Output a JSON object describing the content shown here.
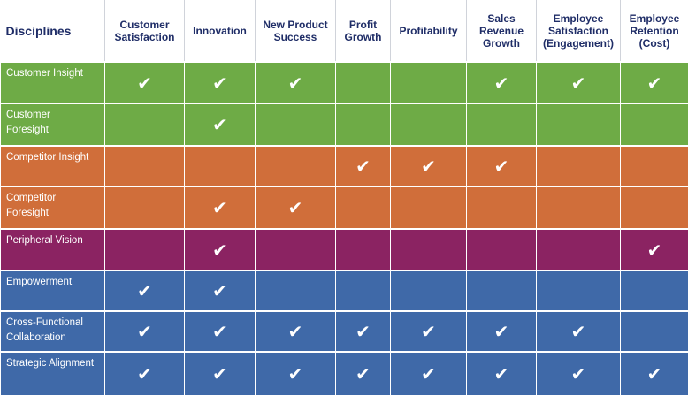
{
  "header": {
    "disciplines": "Disciplines",
    "columns": [
      [
        "Customer",
        "Satisfaction"
      ],
      [
        "Innovation"
      ],
      [
        "New Product",
        "Success"
      ],
      [
        "Profit",
        "Growth"
      ],
      [
        "Profitability"
      ],
      [
        "Sales",
        "Revenue",
        "Growth"
      ],
      [
        "Employee",
        "Satisfaction",
        "(Engagement)"
      ],
      [
        "Employee",
        "Retention",
        "(Cost)"
      ]
    ]
  },
  "check_icon": "check-icon",
  "colors": {
    "green": "#6eab46",
    "orange": "#d06e3a",
    "purple": "#8b2362",
    "blue": "#3f69a8",
    "header_text": "#1f2d67"
  },
  "rows": [
    {
      "label": [
        "Customer Insight"
      ],
      "color": "green",
      "height": 47,
      "checks": [
        true,
        true,
        true,
        false,
        false,
        true,
        true,
        true
      ]
    },
    {
      "label": [
        "Customer",
        "Foresight"
      ],
      "color": "green",
      "height": 48,
      "checks": [
        false,
        true,
        false,
        false,
        false,
        false,
        false,
        false
      ]
    },
    {
      "label": [
        "Competitor Insight"
      ],
      "color": "orange",
      "height": 46,
      "checks": [
        false,
        false,
        false,
        true,
        true,
        true,
        false,
        false
      ]
    },
    {
      "label": [
        "Competitor",
        "Foresight"
      ],
      "color": "orange",
      "height": 48,
      "checks": [
        false,
        true,
        true,
        false,
        false,
        false,
        false,
        false
      ]
    },
    {
      "label": [
        "Peripheral Vision"
      ],
      "color": "purple",
      "height": 47,
      "checks": [
        false,
        true,
        false,
        false,
        false,
        false,
        false,
        true
      ]
    },
    {
      "label": [
        "Empowerment"
      ],
      "color": "blue",
      "height": 46,
      "checks": [
        true,
        true,
        false,
        false,
        false,
        false,
        false,
        false
      ]
    },
    {
      "label": [
        "Cross-Functional",
        "Collaboration"
      ],
      "color": "blue",
      "height": 46,
      "checks": [
        true,
        true,
        true,
        true,
        true,
        true,
        true,
        false
      ]
    },
    {
      "label": [
        "Strategic Alignment"
      ],
      "color": "blue",
      "height": 49,
      "checks": [
        true,
        true,
        true,
        true,
        true,
        true,
        true,
        true
      ]
    }
  ]
}
